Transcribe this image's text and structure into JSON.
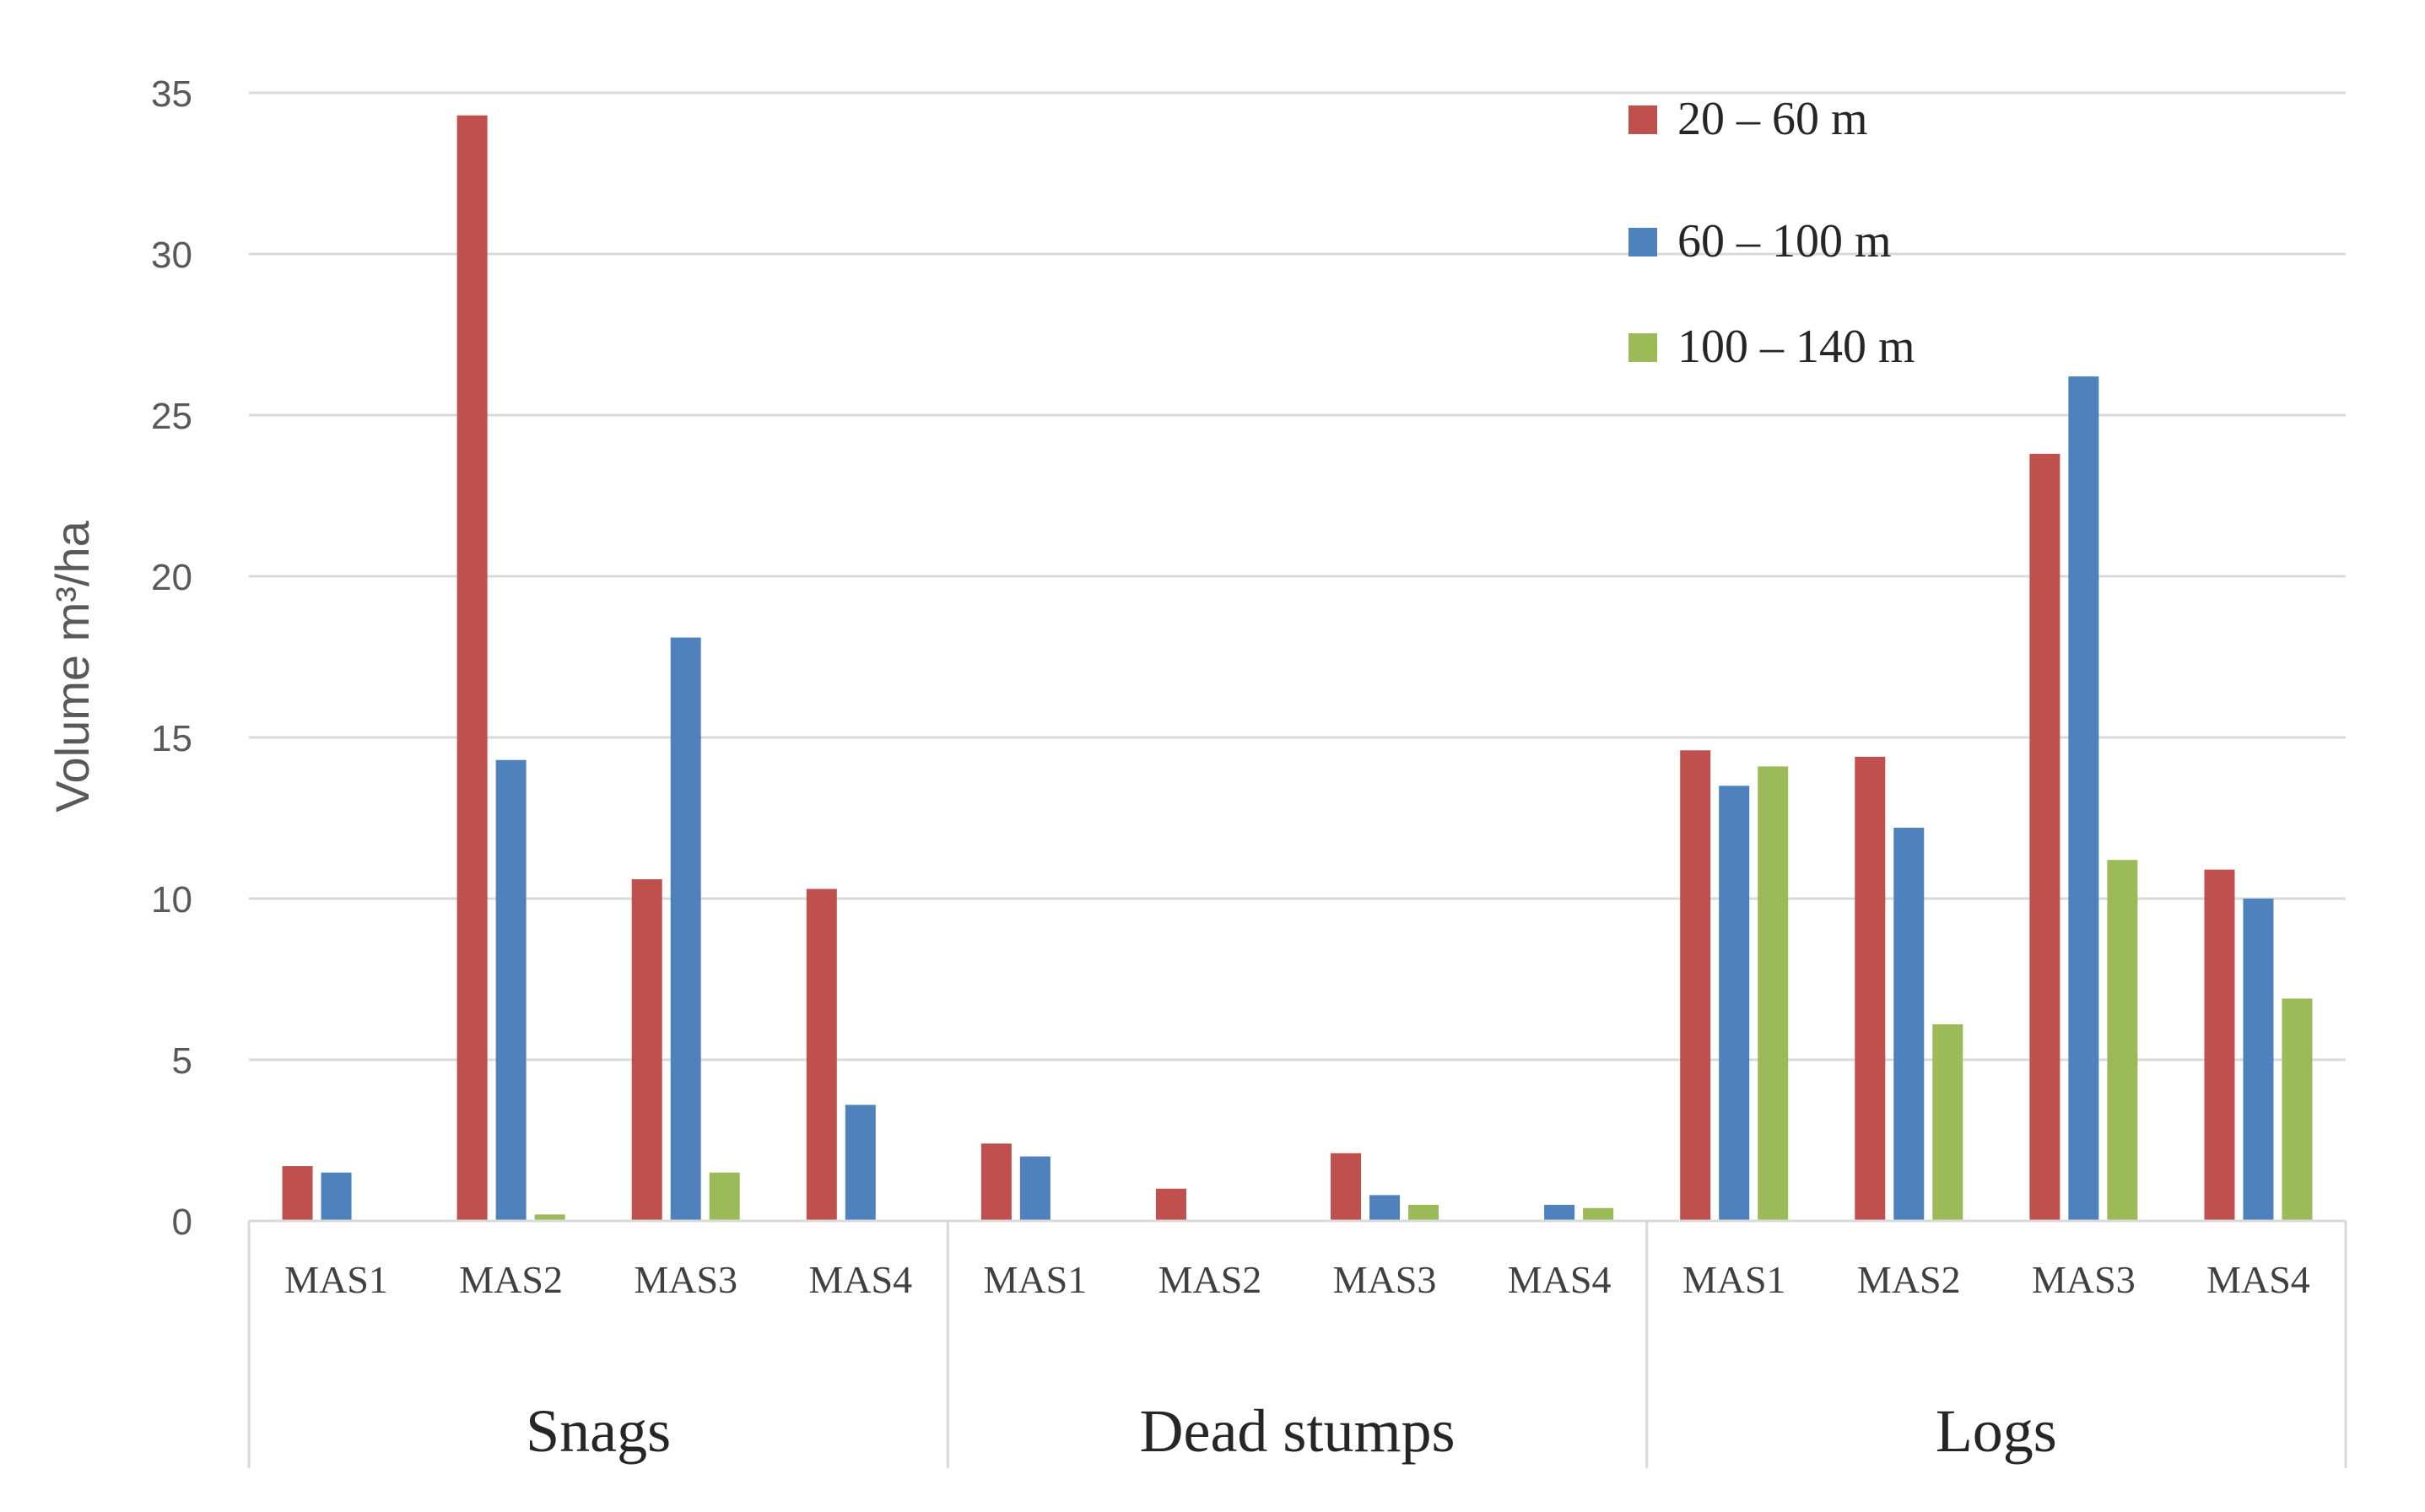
{
  "chart_data": {
    "type": "bar",
    "ylabel": "Volume m³/ha",
    "ylim": [
      0,
      35
    ],
    "yticks": [
      0,
      5,
      10,
      15,
      20,
      25,
      30,
      35
    ],
    "grid": true,
    "legend_position": "top-right",
    "groups": [
      {
        "name": "Snags",
        "categories": [
          "MAS1",
          "MAS2",
          "MAS3",
          "MAS4"
        ]
      },
      {
        "name": "Dead stumps",
        "categories": [
          "MAS1",
          "MAS2",
          "MAS3",
          "MAS4"
        ]
      },
      {
        "name": "Logs",
        "categories": [
          "MAS1",
          "MAS2",
          "MAS3",
          "MAS4"
        ]
      }
    ],
    "series": [
      {
        "name": "20 – 60 m",
        "color": "#C0504D",
        "values": [
          1.7,
          34.3,
          10.6,
          10.3,
          2.4,
          1.0,
          2.1,
          0.0,
          14.6,
          14.4,
          23.8,
          10.9
        ]
      },
      {
        "name": "60 – 100 m",
        "color": "#4F81BD",
        "values": [
          1.5,
          14.3,
          18.1,
          3.6,
          2.0,
          0.0,
          0.8,
          0.5,
          13.5,
          12.2,
          26.2,
          10.0
        ]
      },
      {
        "name": "100 – 140 m",
        "color": "#9BBB59",
        "values": [
          0.0,
          0.2,
          1.5,
          0.0,
          0.0,
          0.0,
          0.5,
          0.4,
          14.1,
          6.1,
          11.2,
          6.9
        ]
      }
    ]
  }
}
